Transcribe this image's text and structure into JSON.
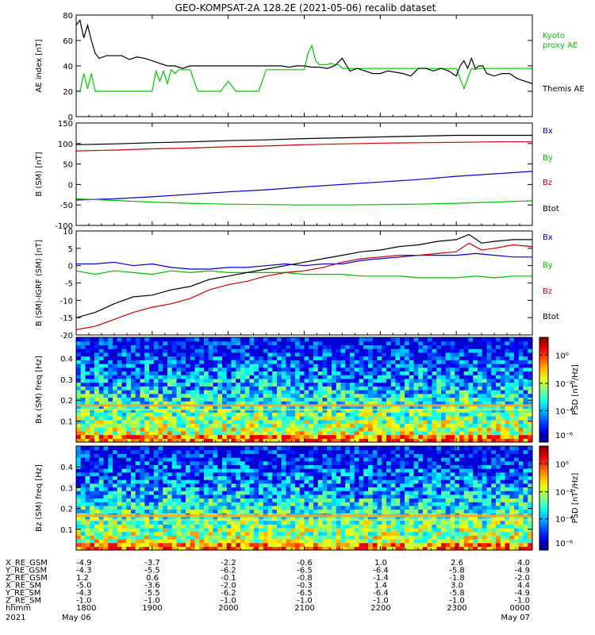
{
  "title": "GEO-KOMPSAT-2A 128.2E (2021-05-06) recalib dataset",
  "time_ticks": [
    "1800",
    "1900",
    "2000",
    "2100",
    "2200",
    "2300",
    "0000"
  ],
  "chart_data": [
    {
      "type": "line",
      "ylabel": "AE index [nT]",
      "ylim": [
        0,
        80
      ],
      "yticks": [
        0,
        20,
        40,
        60,
        80
      ],
      "grid": false,
      "series": [
        {
          "name": "Kyoto proxy AE",
          "label_lines": [
            "Kyoto",
            "proxy AE"
          ],
          "color": "#00cc00",
          "x": [
            1800,
            1803,
            1806,
            1809,
            1812,
            1815,
            1818,
            1824,
            1830,
            1836,
            1842,
            1848,
            1854,
            1900,
            1903,
            1906,
            1909,
            1912,
            1915,
            1918,
            1921,
            1924,
            1927,
            1930,
            1936,
            1942,
            1948,
            1954,
            2000,
            2006,
            2012,
            2018,
            2024,
            2030,
            2036,
            2042,
            2048,
            2054,
            2100,
            2103,
            2106,
            2109,
            2112,
            2115,
            2118,
            2121,
            2124,
            2127,
            2130,
            2136,
            2142,
            2148,
            2154,
            2200,
            2206,
            2212,
            2218,
            2224,
            2230,
            2236,
            2242,
            2248,
            2254,
            2300,
            2303,
            2306,
            2309,
            2312,
            2315,
            2318,
            2324,
            2330,
            2336,
            2342,
            2348,
            2354,
            2400
          ],
          "values": [
            20,
            20,
            34,
            22,
            34,
            20,
            20,
            20,
            20,
            20,
            20,
            20,
            20,
            20,
            36,
            28,
            36,
            26,
            37,
            34,
            37,
            37,
            37,
            37,
            20,
            20,
            20,
            20,
            28,
            20,
            20,
            20,
            20,
            37,
            37,
            37,
            37,
            37,
            37,
            50,
            56,
            44,
            41,
            41,
            41,
            42,
            41,
            41,
            38,
            38,
            38,
            38,
            38,
            38,
            38,
            38,
            38,
            38,
            38,
            38,
            38,
            38,
            38,
            38,
            30,
            22,
            30,
            38,
            37,
            38,
            38,
            38,
            38,
            38,
            38,
            38,
            38
          ]
        },
        {
          "name": "Themis AE",
          "label_lines": [
            "Themis AE"
          ],
          "color": "#000000",
          "x": [
            1800,
            1803,
            1806,
            1809,
            1812,
            1815,
            1818,
            1824,
            1830,
            1836,
            1842,
            1848,
            1854,
            1900,
            1906,
            1912,
            1918,
            1924,
            1930,
            1936,
            1942,
            1948,
            1954,
            2000,
            2006,
            2012,
            2018,
            2024,
            2030,
            2036,
            2042,
            2048,
            2054,
            2100,
            2106,
            2112,
            2118,
            2124,
            2130,
            2136,
            2142,
            2148,
            2154,
            2200,
            2206,
            2212,
            2218,
            2224,
            2230,
            2236,
            2242,
            2248,
            2254,
            2300,
            2303,
            2306,
            2309,
            2312,
            2315,
            2318,
            2321,
            2324,
            2330,
            2336,
            2342,
            2348,
            2354,
            2400
          ],
          "values": [
            72,
            76,
            62,
            72,
            60,
            50,
            46,
            48,
            48,
            48,
            45,
            47,
            46,
            44,
            42,
            40,
            40,
            38,
            40,
            40,
            40,
            40,
            40,
            40,
            40,
            40,
            40,
            40,
            40,
            40,
            40,
            39,
            40,
            40,
            39,
            39,
            38,
            40,
            46,
            36,
            38,
            36,
            34,
            34,
            36,
            35,
            34,
            32,
            38,
            38,
            36,
            38,
            36,
            32,
            40,
            44,
            38,
            46,
            38,
            40,
            40,
            34,
            32,
            34,
            34,
            30,
            28,
            26
          ]
        }
      ]
    },
    {
      "type": "line",
      "ylabel": "B (SM) [nT]",
      "ylim": [
        -100,
        150
      ],
      "yticks": [
        -100,
        -50,
        0,
        50,
        100,
        150
      ],
      "grid": false,
      "series": [
        {
          "name": "Bx",
          "color": "#0000cc",
          "x": [
            1800,
            1830,
            1900,
            1930,
            2000,
            2030,
            2100,
            2130,
            2200,
            2230,
            2300,
            2330,
            2400
          ],
          "values": [
            -38,
            -35,
            -30,
            -24,
            -18,
            -13,
            -6,
            0,
            6,
            12,
            20,
            26,
            32
          ]
        },
        {
          "name": "By",
          "color": "#00bb00",
          "x": [
            1800,
            1830,
            1900,
            1930,
            2000,
            2030,
            2100,
            2130,
            2200,
            2230,
            2300,
            2330,
            2400
          ],
          "values": [
            -35,
            -39,
            -43,
            -46,
            -48,
            -49,
            -50,
            -50,
            -49,
            -48,
            -46,
            -43,
            -40
          ]
        },
        {
          "name": "Bz",
          "color": "#cc0000",
          "x": [
            1800,
            1830,
            1900,
            1930,
            2000,
            2030,
            2100,
            2130,
            2200,
            2230,
            2300,
            2330,
            2400
          ],
          "values": [
            82,
            84,
            87,
            89,
            92,
            94,
            97,
            99,
            101,
            102,
            103,
            104,
            104
          ]
        },
        {
          "name": "Btot",
          "color": "#000000",
          "x": [
            1800,
            1830,
            1900,
            1930,
            2000,
            2030,
            2100,
            2130,
            2200,
            2230,
            2300,
            2330,
            2400
          ],
          "values": [
            97,
            99,
            102,
            104,
            107,
            109,
            112,
            114,
            116,
            118,
            120,
            120,
            120
          ]
        }
      ]
    },
    {
      "type": "line",
      "ylabel": "B (SM)-IGRF (SM) [nT]",
      "ylim": [
        -20,
        10
      ],
      "yticks": [
        -20,
        -15,
        -10,
        -5,
        0,
        5,
        10
      ],
      "grid": false,
      "series": [
        {
          "name": "Bx",
          "color": "#0000cc",
          "x": [
            1800,
            1815,
            1830,
            1845,
            1900,
            1915,
            1930,
            1945,
            2000,
            2015,
            2030,
            2045,
            2100,
            2115,
            2130,
            2145,
            2200,
            2215,
            2230,
            2245,
            2300,
            2315,
            2330,
            2345,
            2400
          ],
          "values": [
            0.5,
            0.5,
            1.0,
            0,
            0.5,
            -0.5,
            -1.0,
            -1.0,
            -0.5,
            -0.5,
            0,
            0.5,
            0,
            0.5,
            0.5,
            1.5,
            2.0,
            2.5,
            3.0,
            3.0,
            3.0,
            3.5,
            3.0,
            2.5,
            2.5
          ]
        },
        {
          "name": "By",
          "color": "#00bb00",
          "x": [
            1800,
            1815,
            1830,
            1845,
            1900,
            1915,
            1930,
            1945,
            2000,
            2015,
            2030,
            2045,
            2100,
            2115,
            2130,
            2145,
            2200,
            2215,
            2230,
            2245,
            2300,
            2315,
            2330,
            2345,
            2400
          ],
          "values": [
            -1.5,
            -2.5,
            -1.5,
            -2.0,
            -2.5,
            -1.5,
            -2.0,
            -1.5,
            -2.0,
            -2.0,
            -2.0,
            -2.0,
            -2.5,
            -2.5,
            -2.5,
            -3.0,
            -3.0,
            -3.0,
            -3.5,
            -3.5,
            -3.5,
            -3.0,
            -3.5,
            -3.0,
            -3.0
          ]
        },
        {
          "name": "Bz",
          "color": "#cc0000",
          "x": [
            1800,
            1815,
            1830,
            1845,
            1900,
            1915,
            1930,
            1945,
            2000,
            2015,
            2030,
            2045,
            2100,
            2115,
            2130,
            2145,
            2200,
            2215,
            2230,
            2245,
            2300,
            2310,
            2320,
            2330,
            2345,
            2400
          ],
          "values": [
            -18.5,
            -17.5,
            -15.5,
            -13.5,
            -12.0,
            -11.0,
            -9.5,
            -7.0,
            -5.5,
            -4.5,
            -3.0,
            -2.0,
            -1.5,
            -0.5,
            1.0,
            2.0,
            2.5,
            3.0,
            3.0,
            3.5,
            4.0,
            6.5,
            4.5,
            5.0,
            6.0,
            5.5
          ]
        },
        {
          "name": "Btot",
          "color": "#000000",
          "x": [
            1800,
            1815,
            1830,
            1845,
            1900,
            1915,
            1930,
            1945,
            2000,
            2015,
            2030,
            2045,
            2100,
            2115,
            2130,
            2145,
            2200,
            2215,
            2230,
            2245,
            2300,
            2310,
            2320,
            2330,
            2345,
            2400
          ],
          "values": [
            -15.0,
            -13.5,
            -11.0,
            -9.0,
            -8.5,
            -7.0,
            -6.0,
            -4.0,
            -3.0,
            -2.0,
            -1.0,
            0,
            1.0,
            2.0,
            3.0,
            4.0,
            4.5,
            5.5,
            6.0,
            7.0,
            7.5,
            9.0,
            6.5,
            7.0,
            7.5,
            7.5
          ]
        }
      ]
    },
    {
      "type": "heatmap",
      "ylabel": "Bx (SM) freq [Hz]",
      "ylim": [
        0,
        0.5
      ],
      "yticks": [
        0.1,
        0.2,
        0.3,
        0.4
      ],
      "colorbar": {
        "label": "PSD [nT²/Hz]",
        "ticks": [
          "10⁰",
          "10⁻²",
          "10⁻⁴",
          "10⁻⁶"
        ]
      },
      "line_freq": 0.175
    },
    {
      "type": "heatmap",
      "ylabel": "Bz (SM) freq [Hz]",
      "ylim": [
        0,
        0.5
      ],
      "yticks": [
        0.1,
        0.2,
        0.3,
        0.4
      ],
      "colorbar": {
        "label": "PSD [nT²/Hz]",
        "ticks": [
          "10⁰",
          "10⁻²",
          "10⁻⁴",
          "10⁻⁶"
        ]
      },
      "line_freq": 0.165
    }
  ],
  "ephemeris": {
    "rows": [
      {
        "label": "X_RE_GSM",
        "values": [
          "-4.9",
          "-3.7",
          "-2.2",
          "-0.6",
          "1.0",
          "2.6",
          "4.0"
        ]
      },
      {
        "label": "Y_RE_GSM",
        "values": [
          "-4.3",
          "-5.5",
          "-6.2",
          "-6.5",
          "-6.4",
          "-5.8",
          "-4.9"
        ]
      },
      {
        "label": "Z_RE_GSM",
        "values": [
          "1.2",
          "0.6",
          "-0.1",
          "-0.8",
          "-1.4",
          "-1.8",
          "-2.0"
        ]
      },
      {
        "label": "X_RE_SM",
        "values": [
          "-5.0",
          "-3.6",
          "-2.0",
          "-0.3",
          "1.4",
          "3.0",
          "4.4"
        ]
      },
      {
        "label": "Y_RE_SM",
        "values": [
          "-4.3",
          "-5.5",
          "-6.2",
          "-6.5",
          "-6.4",
          "-5.8",
          "-4.9"
        ]
      },
      {
        "label": "Z_RE_SM",
        "values": [
          "-1.0",
          "-1.0",
          "-1.0",
          "-1.0",
          "-1.0",
          "-1.0",
          "-1.0"
        ]
      },
      {
        "label": "hhmm",
        "values": [
          "1800",
          "1900",
          "2000",
          "2100",
          "2200",
          "2300",
          "0000"
        ]
      }
    ],
    "year": "2021",
    "start_date": "May 06",
    "end_date": "May 07"
  }
}
